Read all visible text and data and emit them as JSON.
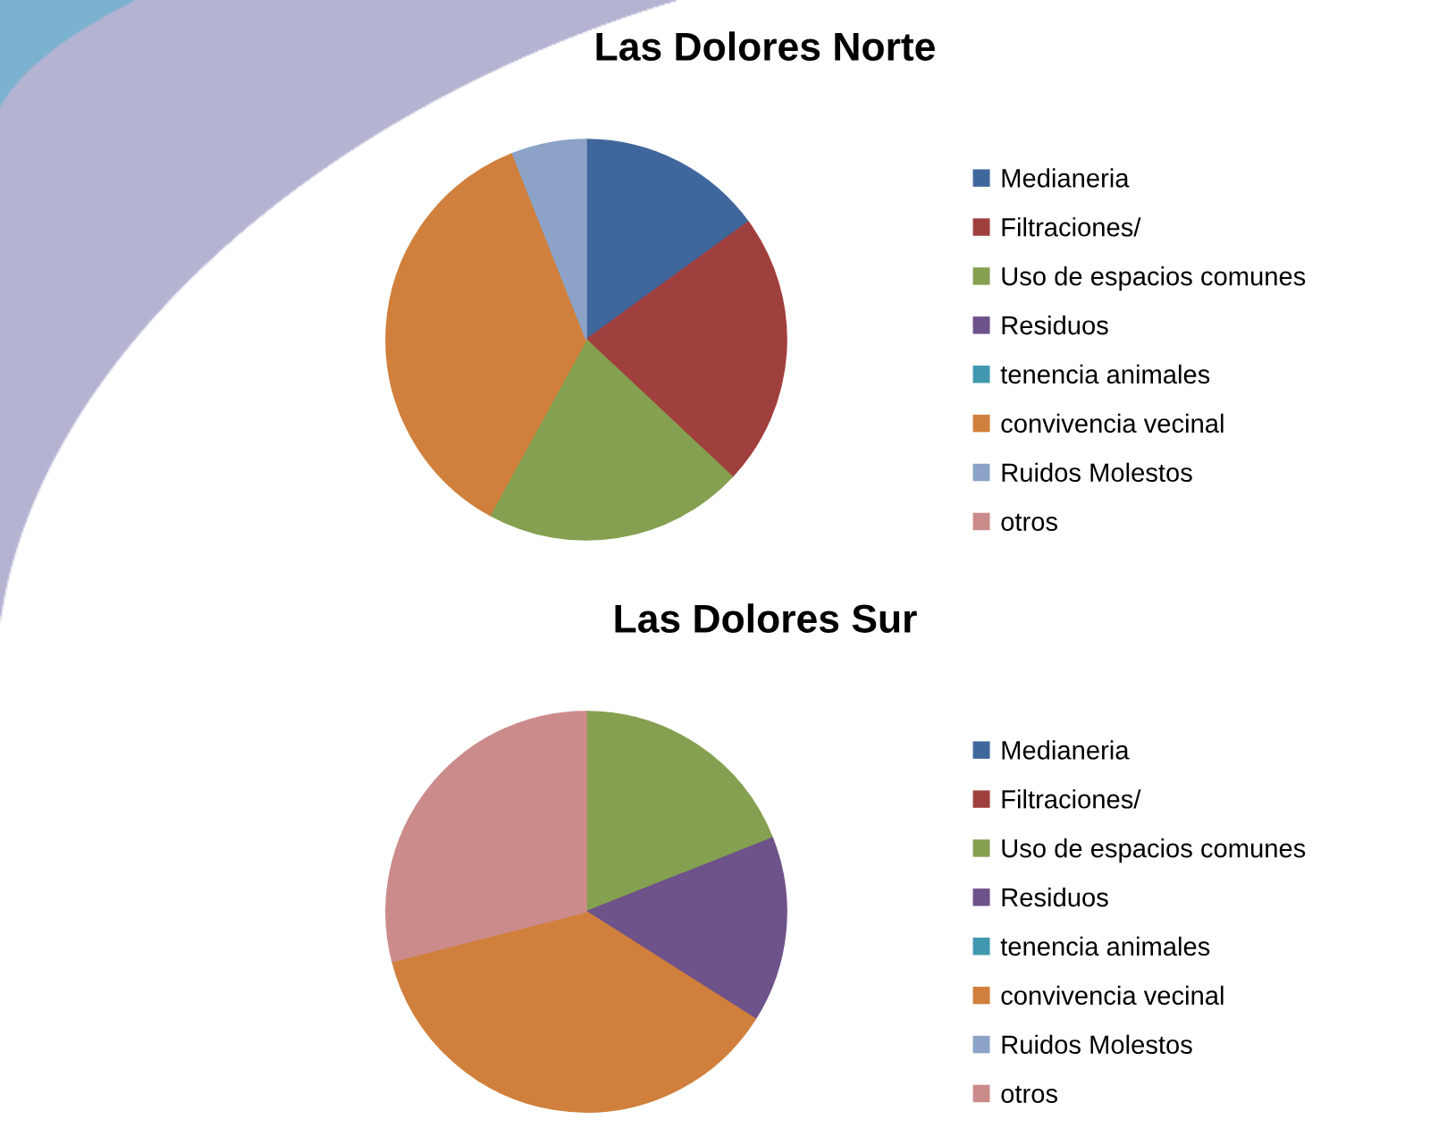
{
  "chart_data": [
    {
      "type": "pie",
      "title": "Las Dolores Norte",
      "categories": [
        "Medianeria",
        "Filtraciones/",
        "Uso de espacios comunes",
        "Residuos",
        "tenencia animales",
        "convivencia vecinal",
        "Ruidos Molestos",
        "otros"
      ],
      "values": [
        15,
        22,
        21,
        0,
        0,
        36,
        6,
        0
      ],
      "colors": [
        "#40679c",
        "#a0403e",
        "#85a050",
        "#6e528a",
        "#4198af",
        "#d0803c",
        "#8ca3c7",
        "#cc8b8b"
      ],
      "legend": "right"
    },
    {
      "type": "pie",
      "title": "Las Dolores Sur",
      "categories": [
        "Medianeria",
        "Filtraciones/",
        "Uso de espacios comunes",
        "Residuos",
        "tenencia animales",
        "convivencia vecinal",
        "Ruidos Molestos",
        "otros"
      ],
      "values": [
        0,
        0,
        19,
        15,
        0,
        37,
        0,
        29
      ],
      "colors": [
        "#40679c",
        "#a0403e",
        "#85a050",
        "#6e528a",
        "#4198af",
        "#d0803c",
        "#8ca3c7",
        "#cc8b8b"
      ],
      "legend": "right"
    }
  ]
}
